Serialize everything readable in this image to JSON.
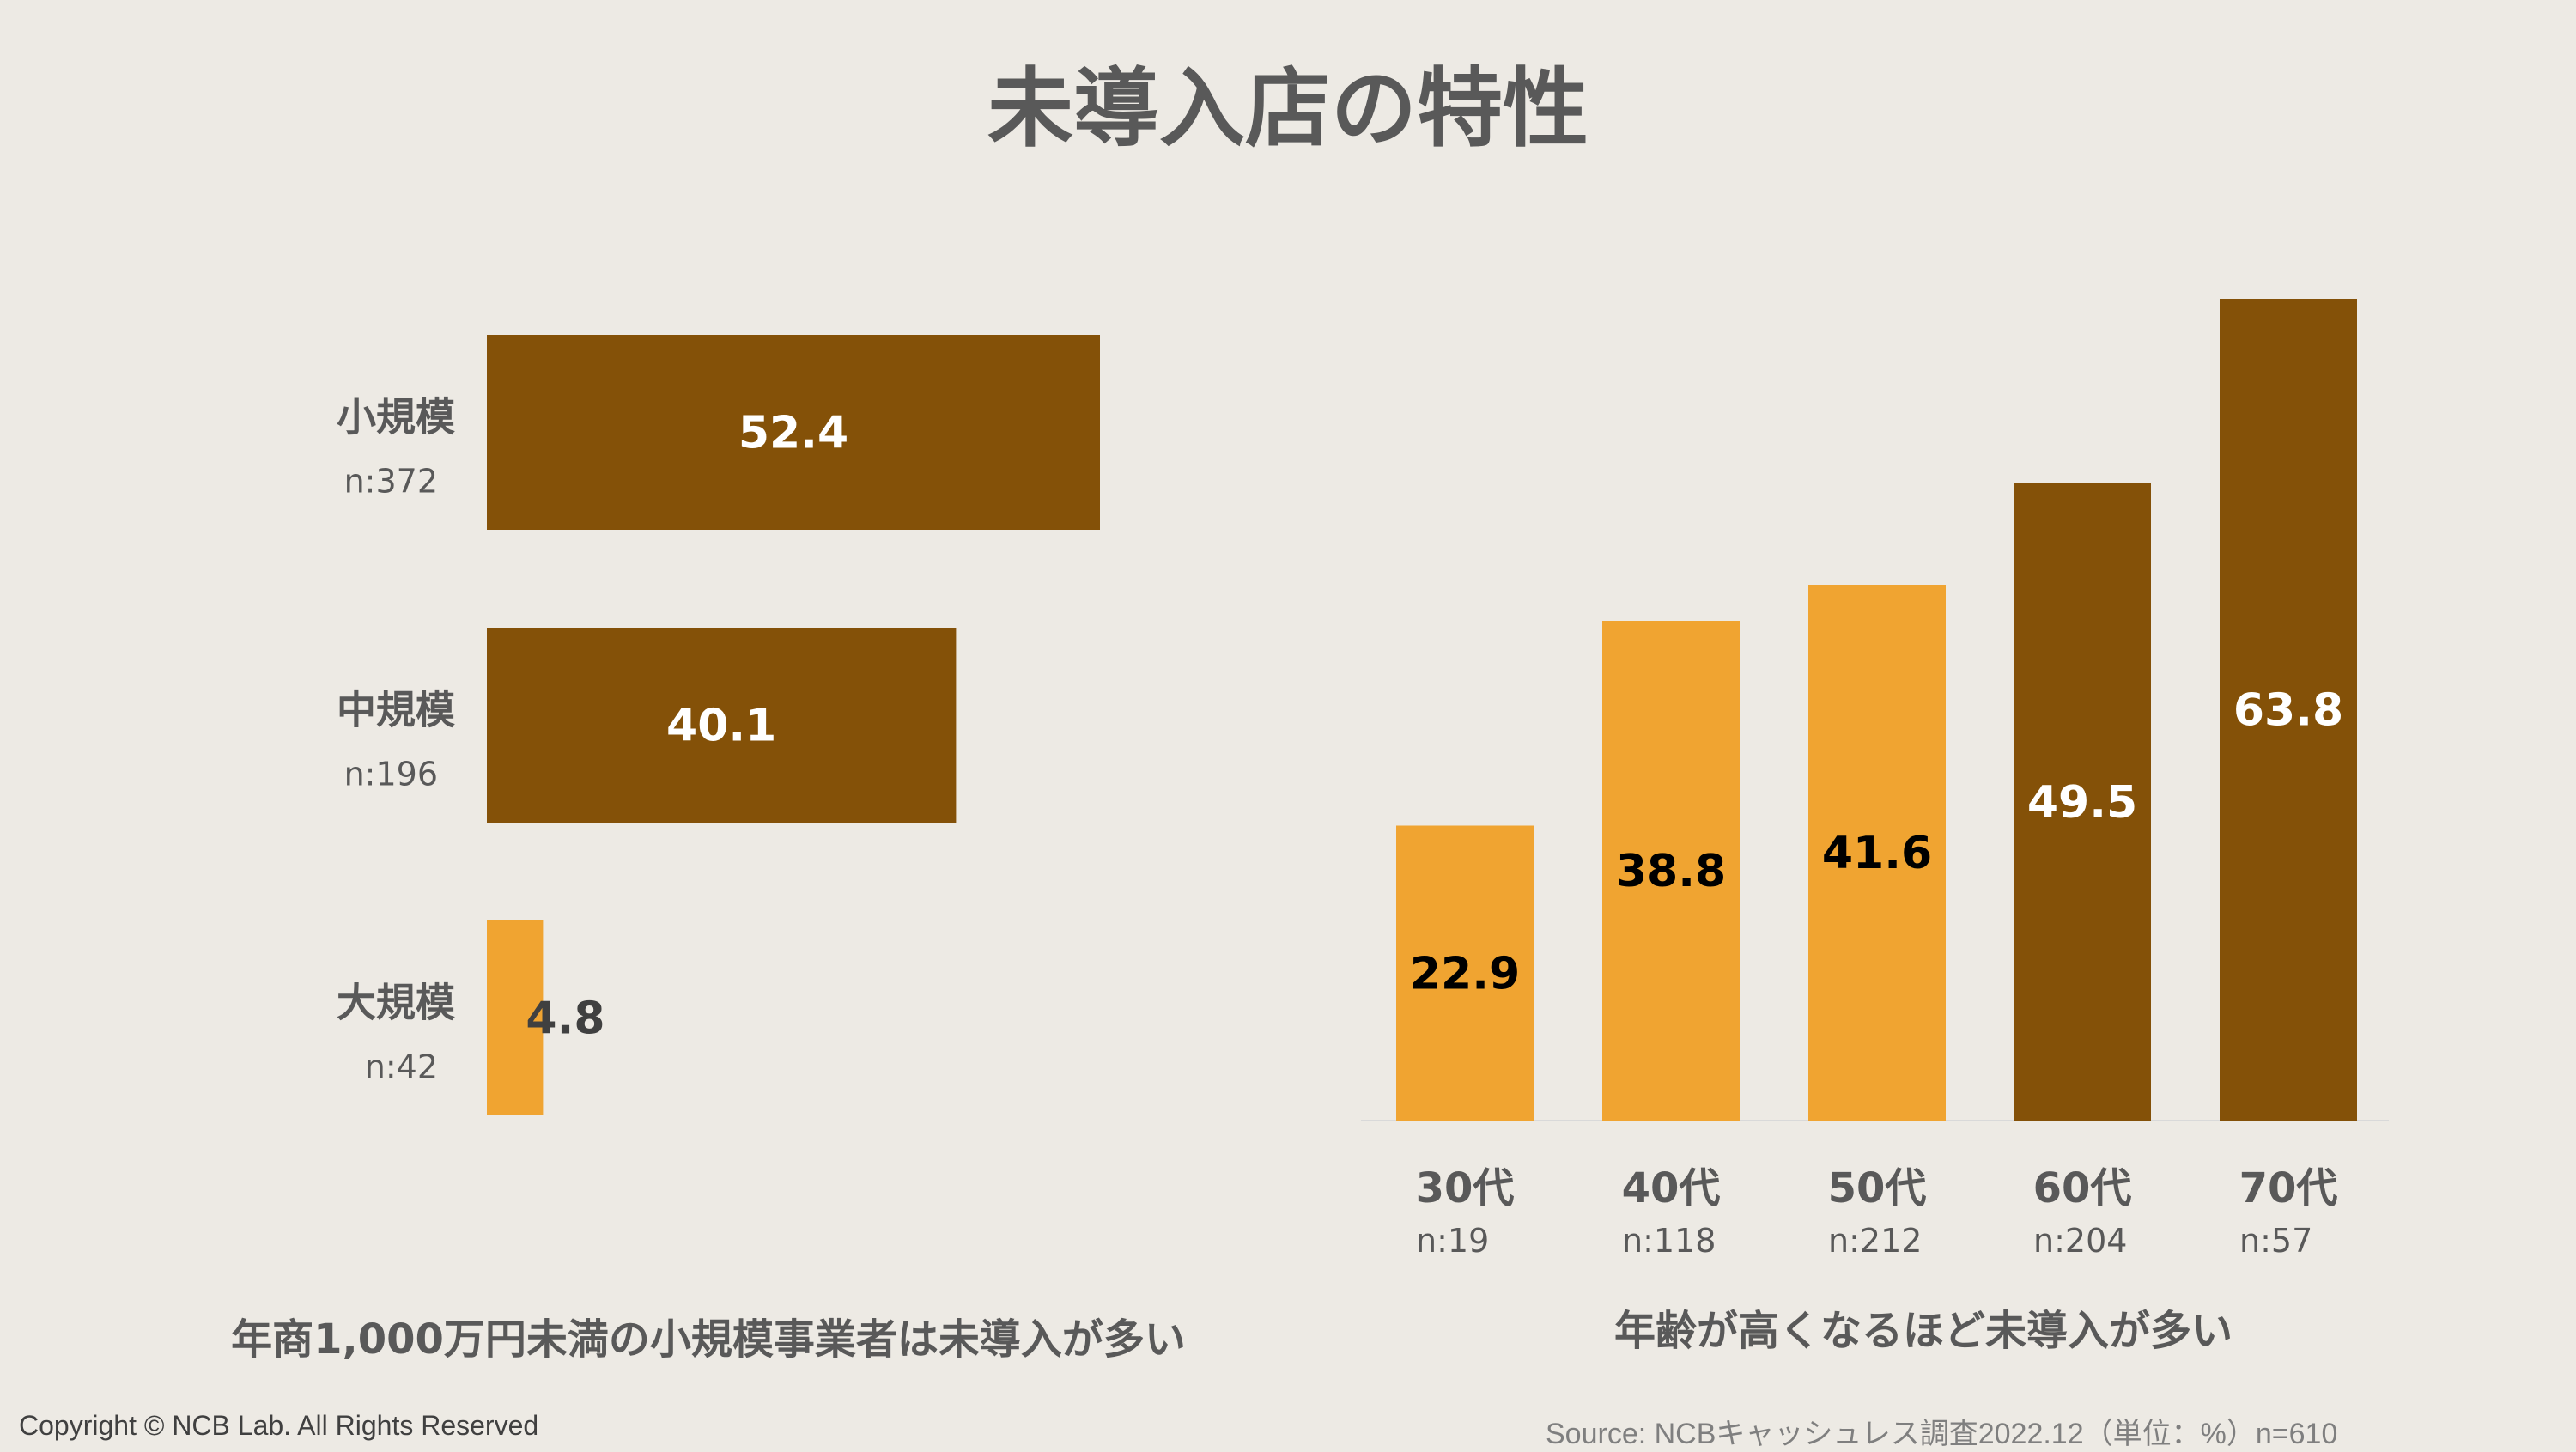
{
  "title": "未導入店の特性",
  "colors": {
    "dark": "#845108",
    "light": "#f0a431",
    "axis": "#d9d9d9",
    "text": "#595959"
  },
  "chart_data": [
    {
      "type": "bar",
      "orientation": "horizontal",
      "categories": [
        "小規模",
        "中規模",
        "大規模"
      ],
      "sample_sizes": [
        "n:372",
        "n:196",
        "n:42"
      ],
      "values": [
        52.4,
        40.1,
        4.8
      ],
      "value_labels": [
        "52.4",
        "40.1",
        "4.8"
      ],
      "bar_colors": [
        "dark",
        "dark",
        "light"
      ],
      "xlim": [
        0,
        52.4
      ],
      "caption": "年商1,000万円未満の小規模事業者は未導入が多い"
    },
    {
      "type": "bar",
      "orientation": "vertical",
      "categories": [
        "30代",
        "40代",
        "50代",
        "60代",
        "70代"
      ],
      "sample_sizes": [
        "n:19",
        "n:118",
        "n:212",
        "n:204",
        "n:57"
      ],
      "values": [
        22.9,
        38.8,
        41.6,
        49.5,
        63.8
      ],
      "value_labels": [
        "22.9",
        "38.8",
        "41.6",
        "49.5",
        "63.8"
      ],
      "bar_colors": [
        "light",
        "light",
        "light",
        "dark",
        "dark"
      ],
      "ylim": [
        0,
        63.8
      ],
      "caption": "年齢が高くなるほど未導入が多い"
    }
  ],
  "footer": {
    "copyright": "Copyright © NCB Lab. All Rights Reserved",
    "source": "Source: NCBキャッシュレス調査2022.12（単位：%）n=610"
  }
}
